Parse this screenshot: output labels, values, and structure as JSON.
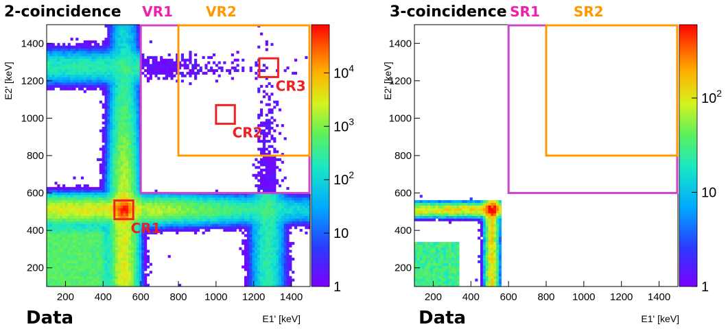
{
  "chart_data": [
    {
      "type": "heatmap",
      "title": "2-coincidence",
      "dataset_label": "Data",
      "xlabel": "E1' [keV]",
      "ylabel": "E2' [keV]",
      "xlim": [
        100,
        1500
      ],
      "ylim": [
        100,
        1500
      ],
      "x_ticks": [
        200,
        400,
        600,
        800,
        1000,
        1200,
        1400
      ],
      "y_ticks": [
        200,
        400,
        600,
        800,
        1000,
        1200,
        1400
      ],
      "z_scale": "log",
      "z_range": [
        1,
        80000
      ],
      "z_ticks": [
        {
          "base": "1",
          "exp": ""
        },
        {
          "base": "10",
          "exp": ""
        },
        {
          "base": "10",
          "exp": "2"
        },
        {
          "base": "10",
          "exp": "3"
        },
        {
          "base": "10",
          "exp": "4"
        }
      ],
      "z_tick_values": [
        1,
        10,
        100,
        1000,
        10000
      ],
      "features": {
        "photopeak_keV": 511,
        "bands": [
          {
            "orientation": "vertical",
            "center": 511,
            "width": 60,
            "level": 3000
          },
          {
            "orientation": "horizontal",
            "center": 511,
            "width": 60,
            "level": 3000
          },
          {
            "orientation": "vertical",
            "center": 1275,
            "width": 70,
            "level": 400
          },
          {
            "orientation": "horizontal",
            "center": 1275,
            "width": 70,
            "level": 400
          }
        ],
        "compton_region_max_keV": 340,
        "peak_counts": 60000
      },
      "regions": [
        {
          "label": "VR1",
          "x": [
            600,
            1500
          ],
          "y": [
            600,
            1500
          ],
          "color": "#cc44cc",
          "label_color": "#ee22aa"
        },
        {
          "label": "VR2",
          "x": [
            800,
            1500
          ],
          "y": [
            800,
            1500
          ],
          "color": "#ff9900",
          "label_color": "#ff9900"
        },
        {
          "label": "CR1",
          "x": [
            460,
            560
          ],
          "y": [
            460,
            560
          ],
          "color": "#ee2222",
          "label_color": "#ee2222"
        },
        {
          "label": "CR2",
          "x": [
            1000,
            1100
          ],
          "y": [
            970,
            1070
          ],
          "color": "#ee2222",
          "label_color": "#ee2222"
        },
        {
          "label": "CR3",
          "x": [
            1230,
            1330
          ],
          "y": [
            1220,
            1320
          ],
          "color": "#ee2222",
          "label_color": "#ee2222"
        }
      ]
    },
    {
      "type": "heatmap",
      "title": "3-coincidence",
      "dataset_label": "Data",
      "xlabel": "E1' [keV]",
      "ylabel": "E2' [keV]",
      "xlim": [
        100,
        1500
      ],
      "ylim": [
        100,
        1500
      ],
      "x_ticks": [
        200,
        400,
        600,
        800,
        1000,
        1200,
        1400
      ],
      "y_ticks": [
        200,
        400,
        600,
        800,
        1000,
        1200,
        1400
      ],
      "z_scale": "log",
      "z_range": [
        1,
        600
      ],
      "z_ticks": [
        {
          "base": "1",
          "exp": ""
        },
        {
          "base": "10",
          "exp": ""
        },
        {
          "base": "10",
          "exp": "2"
        }
      ],
      "z_tick_values": [
        1,
        10,
        100
      ],
      "features": {
        "photopeak_keV": 511,
        "data_max_keV": 560,
        "peak_counts": 500
      },
      "regions": [
        {
          "label": "SR1",
          "x": [
            600,
            1500
          ],
          "y": [
            600,
            1500
          ],
          "color": "#cc44cc",
          "label_color": "#ee22aa"
        },
        {
          "label": "SR2",
          "x": [
            800,
            1500
          ],
          "y": [
            800,
            1500
          ],
          "color": "#ff9900",
          "label_color": "#ff9900"
        }
      ]
    }
  ]
}
